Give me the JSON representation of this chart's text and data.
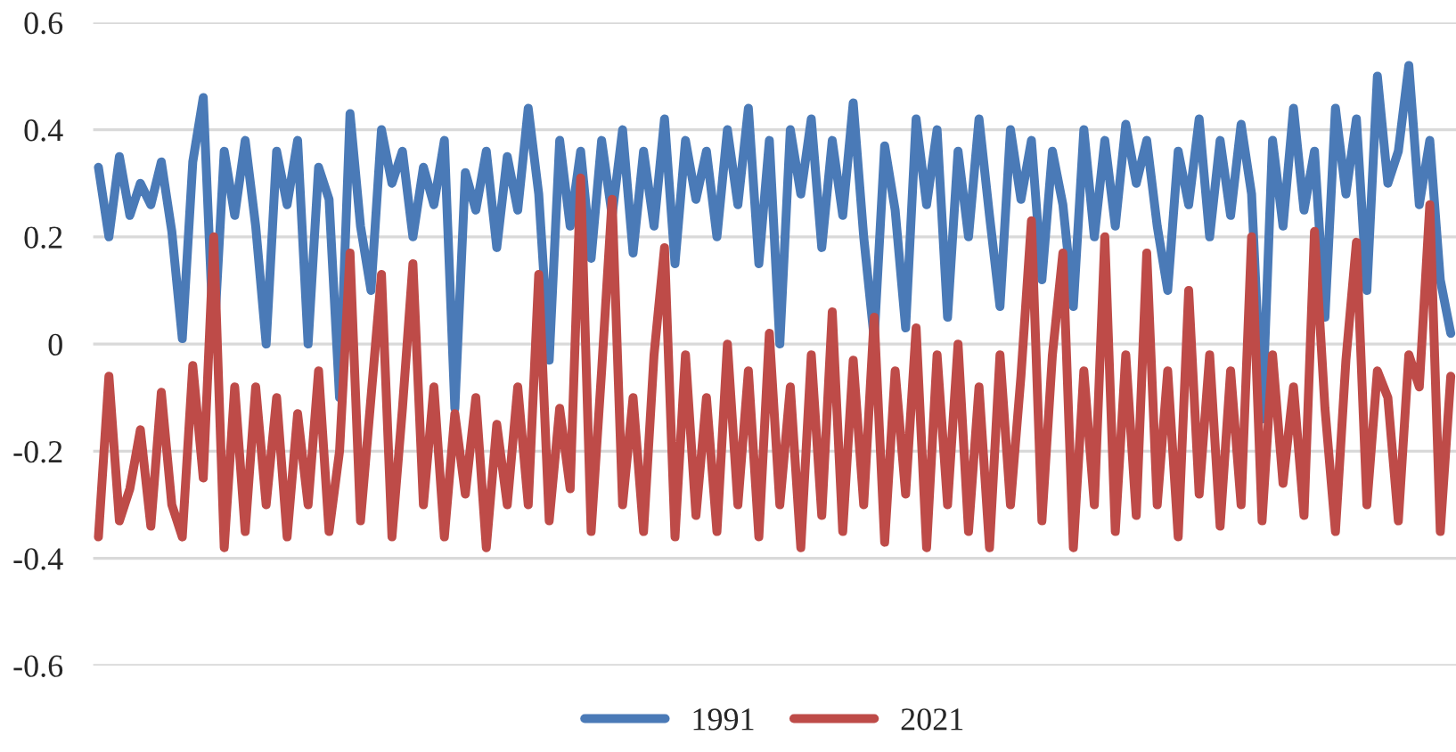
{
  "chart_data": {
    "type": "line",
    "categories": [
      null,
      null,
      null,
      null,
      null,
      null,
      null,
      null,
      null,
      null,
      null,
      null,
      null,
      null,
      null,
      null,
      null,
      null,
      null,
      null,
      null,
      null,
      null,
      null,
      null,
      null,
      null,
      null,
      null,
      null,
      null,
      null,
      null,
      null,
      null,
      null,
      null,
      null,
      null,
      null,
      null,
      null,
      null,
      null,
      null,
      null,
      null,
      null,
      null,
      null,
      null,
      null,
      null,
      null,
      null,
      null,
      null,
      null,
      null,
      null,
      null,
      null,
      null,
      null,
      null,
      null,
      null,
      null,
      null,
      null,
      null,
      null,
      null,
      null,
      null,
      null,
      null,
      null,
      null,
      null,
      null,
      null,
      null,
      null,
      null,
      null,
      null,
      null,
      null,
      null,
      null,
      null,
      null,
      null,
      null,
      null,
      null,
      null,
      null,
      null,
      null,
      null,
      null,
      null,
      null,
      null,
      null,
      null,
      null,
      null,
      null,
      null,
      null,
      null,
      null,
      null,
      null,
      null,
      null,
      null,
      null,
      null,
      null,
      null,
      null,
      null,
      null,
      null,
      null,
      null
    ],
    "ylim": [
      -0.6,
      0.6
    ],
    "yticks": [
      -0.6,
      -0.4,
      -0.2,
      0,
      0.2,
      0.4,
      0.6
    ],
    "grid": "y",
    "legend": "bottom",
    "tick_labels": "y",
    "line_style": "solid",
    "marker": "none",
    "series": [
      {
        "name": "1991",
        "color": "#4a7ab7",
        "values": [
          0.33,
          0.2,
          0.35,
          0.24,
          0.3,
          0.26,
          0.34,
          0.21,
          0.01,
          0.34,
          0.46,
          0.0,
          0.36,
          0.24,
          0.38,
          0.22,
          0.0,
          0.36,
          0.26,
          0.38,
          0.0,
          0.33,
          0.27,
          -0.1,
          0.43,
          0.22,
          0.1,
          0.4,
          0.3,
          0.36,
          0.2,
          0.33,
          0.26,
          0.38,
          -0.12,
          0.32,
          0.25,
          0.36,
          0.18,
          0.35,
          0.25,
          0.44,
          0.28,
          -0.03,
          0.38,
          0.22,
          0.36,
          0.16,
          0.38,
          0.24,
          0.4,
          0.17,
          0.36,
          0.22,
          0.42,
          0.15,
          0.38,
          0.27,
          0.36,
          0.2,
          0.4,
          0.26,
          0.44,
          0.15,
          0.38,
          0.0,
          0.4,
          0.28,
          0.42,
          0.18,
          0.38,
          0.24,
          0.45,
          0.2,
          0.01,
          0.37,
          0.25,
          0.03,
          0.42,
          0.26,
          0.4,
          0.05,
          0.36,
          0.2,
          0.42,
          0.24,
          0.07,
          0.4,
          0.27,
          0.38,
          0.12,
          0.36,
          0.26,
          0.07,
          0.4,
          0.2,
          0.38,
          0.22,
          0.41,
          0.3,
          0.38,
          0.22,
          0.1,
          0.36,
          0.26,
          0.42,
          0.2,
          0.38,
          0.24,
          0.41,
          0.28,
          -0.14,
          0.38,
          0.22,
          0.44,
          0.25,
          0.36,
          0.05,
          0.44,
          0.28,
          0.42,
          0.1,
          0.5,
          0.3,
          0.36,
          0.52,
          0.26,
          0.38,
          0.12,
          0.02
        ]
      },
      {
        "name": "2021",
        "color": "#be4b48",
        "values": [
          -0.36,
          -0.06,
          -0.33,
          -0.27,
          -0.16,
          -0.34,
          -0.09,
          -0.3,
          -0.36,
          -0.04,
          -0.25,
          0.2,
          -0.38,
          -0.08,
          -0.35,
          -0.08,
          -0.3,
          -0.1,
          -0.36,
          -0.13,
          -0.3,
          -0.05,
          -0.35,
          -0.2,
          0.17,
          -0.33,
          -0.1,
          0.13,
          -0.36,
          -0.12,
          0.15,
          -0.3,
          -0.08,
          -0.36,
          -0.13,
          -0.28,
          -0.1,
          -0.38,
          -0.15,
          -0.3,
          -0.08,
          -0.3,
          0.13,
          -0.33,
          -0.12,
          -0.27,
          0.31,
          -0.35,
          -0.05,
          0.27,
          -0.3,
          -0.1,
          -0.35,
          -0.02,
          0.18,
          -0.36,
          -0.02,
          -0.32,
          -0.1,
          -0.35,
          0.0,
          -0.3,
          -0.05,
          -0.36,
          0.02,
          -0.3,
          -0.08,
          -0.38,
          -0.02,
          -0.32,
          0.06,
          -0.35,
          -0.03,
          -0.3,
          0.05,
          -0.37,
          -0.05,
          -0.28,
          0.03,
          -0.38,
          -0.02,
          -0.3,
          0.0,
          -0.35,
          -0.08,
          -0.38,
          -0.02,
          -0.3,
          -0.06,
          0.23,
          -0.33,
          -0.02,
          0.17,
          -0.38,
          -0.05,
          -0.3,
          0.2,
          -0.35,
          -0.02,
          -0.32,
          0.17,
          -0.3,
          -0.05,
          -0.36,
          0.1,
          -0.28,
          -0.02,
          -0.34,
          -0.05,
          -0.3,
          0.2,
          -0.33,
          -0.02,
          -0.26,
          -0.08,
          -0.32,
          0.21,
          -0.12,
          -0.35,
          -0.03,
          0.19,
          -0.3,
          -0.05,
          -0.1,
          -0.33,
          -0.02,
          -0.08,
          0.26,
          -0.35,
          -0.06
        ]
      }
    ]
  }
}
